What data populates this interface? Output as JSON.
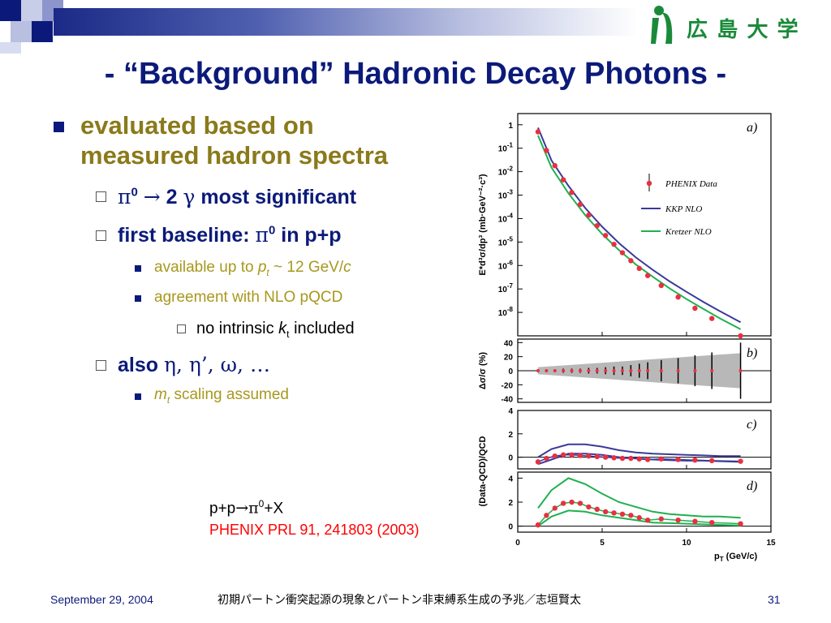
{
  "slide": {
    "title": "- “Background” Hadronic Decay Photons -",
    "logo": {
      "text": "広 島 大 学",
      "icon": "hiroshima-university-logo-icon",
      "color": "#1a8a3a"
    },
    "bullets": {
      "b1_line1": "evaluated based on",
      "b1_line2": "measured hadron spectra",
      "b2_pi": "π",
      "b2_zero": "0",
      "b2_arrow": "→",
      "b2_two": "2",
      "b2_gamma": "γ",
      "b2_rest": "most significant",
      "b3_text": "first baseline:",
      "b3_pi": "π",
      "b3_zero": "0",
      "b3_rest": "in p+p",
      "b4_text": "available up to",
      "b4_p": "p",
      "b4_sub": "t",
      "b4_rest": "~ 12 GeV/",
      "b4_c": "c",
      "b5_text": "agreement with NLO pQCD",
      "b6_text": "no intrinsic",
      "b6_k": "k",
      "b6_sub": "t",
      "b6_rest": "included",
      "b7_text": "also",
      "b7_syms": "η, η’, ω, …",
      "b8_m": "m",
      "b8_sub": "t",
      "b8_rest": "scaling assumed"
    },
    "caption": {
      "reaction_a": "p+p",
      "reaction_arrow": "→",
      "reaction_pi": "π",
      "reaction_zero": "0",
      "reaction_b": "+X",
      "reference": "PHENIX PRL 91, 241803 (2003)"
    },
    "footer": {
      "date": "September 29, 2004",
      "center": "初期パートン衝突起源の現象とパートン非束縛系生成の予兆／志垣賢太",
      "page": "31"
    },
    "colors": {
      "title": "#0b1a7a",
      "level1": "#8a7a1a",
      "level3": "#a8981e",
      "reference": "#ff0000",
      "data_points": "#e83040",
      "kkp": "#3a3a9a",
      "kretzer": "#20b050"
    }
  },
  "chart_data": {
    "type": "scatter",
    "x_label": "p",
    "x_label_sub": "T",
    "x_label_unit": "(GeV/c)",
    "x_ticks": [
      "0",
      "5",
      "10",
      "15"
    ],
    "xlim": [
      0,
      15
    ],
    "panels": [
      {
        "label": "a)",
        "ylabel": "E*d³σ/dp³ (mb·GeV⁻²·c³)",
        "y_ticks": [
          "1",
          "10-1",
          "10-2",
          "10-3",
          "10-4",
          "10-5",
          "10-6",
          "10-7",
          "10-8"
        ],
        "y_scale": "log",
        "ylim": [
          1e-09,
          3
        ],
        "legend": [
          "PHENIX Data",
          "KKP NLO",
          "Kretzer NLO"
        ],
        "series": [
          {
            "name": "PHENIX Data",
            "kind": "points",
            "x": [
              1.2,
              1.7,
              2.2,
              2.7,
              3.2,
              3.7,
              4.2,
              4.7,
              5.2,
              5.7,
              6.2,
              6.7,
              7.2,
              7.7,
              8.5,
              9.5,
              10.5,
              11.5,
              13.2
            ],
            "y": [
              0.5,
              0.08,
              0.018,
              0.0045,
              0.0013,
              0.0004,
              0.00014,
              5e-05,
              1.9e-05,
              8e-06,
              3.5e-06,
              1.6e-06,
              7.5e-07,
              3.7e-07,
              1.4e-07,
              4.5e-08,
              1.5e-08,
              5.5e-09,
              1e-09
            ]
          },
          {
            "name": "KKP NLO",
            "kind": "line",
            "x": [
              1.2,
              2,
              3,
              4,
              5,
              6,
              7,
              8,
              9,
              10,
              11,
              12,
              13.2
            ],
            "y": [
              0.75,
              0.03,
              0.0025,
              0.00028,
              4.5e-05,
              9e-06,
              2.2e-06,
              6.5e-07,
              2.1e-07,
              7.5e-08,
              2.8e-08,
              1.1e-08,
              3.8e-09
            ]
          },
          {
            "name": "Kretzer NLO",
            "kind": "line",
            "x": [
              1.2,
              2,
              3,
              4,
              5,
              6,
              7,
              8,
              9,
              10,
              11,
              12,
              13.2
            ],
            "y": [
              0.35,
              0.015,
              0.0012,
              0.00014,
              2.2e-05,
              4.5e-06,
              1.1e-06,
              3.3e-07,
              1.05e-07,
              3.7e-08,
              1.4e-08,
              5.4e-09,
              1.9e-09
            ]
          }
        ]
      },
      {
        "label": "b)",
        "ylabel": "Δσ/σ (%)",
        "y_ticks": [
          "40",
          "20",
          "0",
          "-20",
          "-40"
        ],
        "ylim": [
          -45,
          45
        ],
        "series": [
          {
            "name": "",
            "kind": "errorbars",
            "x": [
              1.2,
              1.7,
              2.2,
              2.7,
              3.2,
              3.7,
              4.2,
              4.7,
              5.2,
              5.7,
              6.2,
              6.7,
              7.2,
              7.7,
              8.5,
              9.5,
              10.5,
              11.5,
              13.2
            ],
            "y": [
              0,
              0,
              0,
              0,
              0,
              0,
              0,
              0,
              0,
              0,
              0,
              0,
              0,
              0,
              0,
              0,
              0,
              0,
              0
            ],
            "err": [
              2,
              2,
              2,
              3,
              3,
              3,
              4,
              4,
              5,
              6,
              6,
              8,
              10,
              12,
              15,
              18,
              22,
              26,
              40
            ]
          },
          {
            "name": "",
            "kind": "band",
            "x": [
              1.2,
              13.2
            ],
            "y_low": [
              -5,
              -25
            ],
            "y_high": [
              5,
              25
            ]
          }
        ]
      },
      {
        "label": "c)",
        "ylabel": "(Data-QCD)/QCD",
        "y_ticks": [
          "4",
          "2",
          "0"
        ],
        "ylim": [
          -1,
          4
        ],
        "series": [
          {
            "name": "",
            "kind": "points",
            "x": [
              1.2,
              1.7,
              2.2,
              2.7,
              3.2,
              3.7,
              4.2,
              4.7,
              5.2,
              5.7,
              6.2,
              6.7,
              7.2,
              7.7,
              8.5,
              9.5,
              10.5,
              11.5,
              13.2
            ],
            "y": [
              -0.4,
              -0.1,
              0.1,
              0.2,
              0.2,
              0.15,
              0.1,
              0.05,
              0.0,
              -0.05,
              -0.1,
              -0.1,
              -0.15,
              -0.2,
              -0.15,
              -0.2,
              -0.25,
              -0.3,
              -0.35
            ]
          },
          {
            "name": "",
            "kind": "line",
            "x": [
              1.2,
              2,
              3,
              4,
              5,
              6,
              7,
              8,
              9,
              10,
              11,
              12,
              13.2
            ],
            "y": [
              0.0,
              0.7,
              1.1,
              1.1,
              0.9,
              0.6,
              0.4,
              0.3,
              0.25,
              0.2,
              0.15,
              0.1,
              0.1
            ]
          },
          {
            "name": "",
            "kind": "line",
            "x": [
              1.2,
              2,
              3,
              4,
              5,
              6,
              7,
              8,
              9,
              10,
              11,
              12,
              13.2
            ],
            "y": [
              -0.6,
              -0.2,
              0.3,
              0.3,
              0.2,
              0.0,
              -0.1,
              -0.2,
              -0.25,
              -0.3,
              -0.3,
              -0.35,
              -0.4
            ]
          }
        ]
      },
      {
        "label": "d)",
        "ylabel": "(Data-QCD)/QCD",
        "y_ticks": [
          "4",
          "2",
          "0"
        ],
        "ylim": [
          -0.5,
          4.5
        ],
        "series": [
          {
            "name": "",
            "kind": "points",
            "x": [
              1.2,
              1.7,
              2.2,
              2.7,
              3.2,
              3.7,
              4.2,
              4.7,
              5.2,
              5.7,
              6.2,
              6.7,
              7.2,
              7.7,
              8.5,
              9.5,
              10.5,
              11.5,
              13.2
            ],
            "y": [
              0.1,
              0.9,
              1.5,
              1.9,
              2.0,
              1.9,
              1.6,
              1.4,
              1.2,
              1.1,
              1.0,
              0.9,
              0.7,
              0.5,
              0.6,
              0.5,
              0.4,
              0.3,
              0.2
            ]
          },
          {
            "name": "",
            "kind": "line",
            "x": [
              1.2,
              2,
              3,
              4,
              5,
              6,
              7,
              8,
              9,
              10,
              11,
              12,
              13.2
            ],
            "y": [
              1.5,
              3.0,
              4.0,
              3.5,
              2.7,
              2.0,
              1.6,
              1.2,
              1.0,
              0.9,
              0.8,
              0.8,
              0.7
            ]
          },
          {
            "name": "",
            "kind": "line",
            "x": [
              1.2,
              2,
              3,
              4,
              5,
              6,
              7,
              8,
              9,
              10,
              11,
              12,
              13.2
            ],
            "y": [
              0.0,
              0.8,
              1.3,
              1.2,
              0.9,
              0.7,
              0.5,
              0.3,
              0.25,
              0.2,
              0.15,
              0.1,
              0.05
            ]
          }
        ]
      }
    ]
  }
}
